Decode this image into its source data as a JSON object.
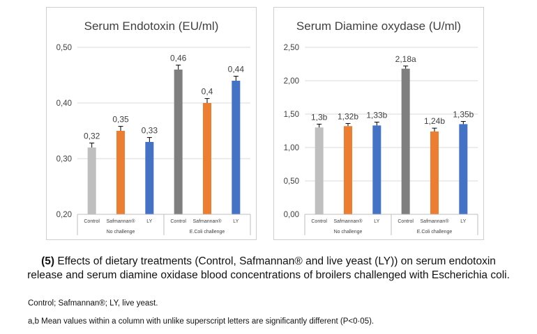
{
  "chart_data": [
    {
      "type": "bar",
      "title": "Serum Endotoxin (EU/ml)",
      "categories": [
        "Control",
        "Safmannan®",
        "LY",
        "Control",
        "Safmannan®",
        "LY"
      ],
      "groups": [
        {
          "label": "No challenge",
          "start": 0,
          "end": 2
        },
        {
          "label": "E.Coli challenge",
          "start": 3,
          "end": 5
        }
      ],
      "values": [
        0.32,
        0.35,
        0.33,
        0.46,
        0.4,
        0.44
      ],
      "error": [
        0.008,
        0.008,
        0.008,
        0.008,
        0.008,
        0.008
      ],
      "data_labels": [
        "0,32",
        "0,35",
        "0,33",
        "0,46",
        "0,4",
        "0,44"
      ],
      "colors": [
        "#bfbfbf",
        "#ed7d31",
        "#4472c4",
        "#7f7f7f",
        "#ed7d31",
        "#4472c4"
      ],
      "ylim": [
        0.2,
        0.5
      ],
      "yticks": [
        0.2,
        0.3,
        0.4,
        0.5
      ],
      "ytick_labels": [
        "0,20",
        "0,30",
        "0,40",
        "0,50"
      ],
      "grid": true
    },
    {
      "type": "bar",
      "title": "Serum Diamine oxydase (U/ml)",
      "categories": [
        "Control",
        "Safmannan®",
        "LY",
        "Control",
        "Safmannan®",
        "LY"
      ],
      "groups": [
        {
          "label": "No challenge",
          "start": 0,
          "end": 2
        },
        {
          "label": "E.Coli challenge",
          "start": 3,
          "end": 5
        }
      ],
      "values": [
        1.3,
        1.32,
        1.33,
        2.18,
        1.24,
        1.35
      ],
      "error": [
        0.05,
        0.04,
        0.05,
        0.04,
        0.05,
        0.04
      ],
      "data_labels": [
        "1,3b",
        "1,32b",
        "1,33b",
        "2,18a",
        "1,24b",
        "1,35b"
      ],
      "colors": [
        "#bfbfbf",
        "#ed7d31",
        "#4472c4",
        "#7f7f7f",
        "#ed7d31",
        "#4472c4"
      ],
      "ylim": [
        0,
        2.5
      ],
      "yticks": [
        0,
        0.5,
        1.0,
        1.5,
        2.0,
        2.5
      ],
      "ytick_labels": [
        "0,00",
        "0,50",
        "1,00",
        "1,50",
        "2,00",
        "2,50"
      ],
      "grid": true
    }
  ],
  "caption": {
    "number": "(5)",
    "text": " Effects of dietary treatments (Control, Safmannan® and live yeast (LY)) on serum endotoxin",
    "line2": "release and serum diamine oxidase blood concentrations of broilers challenged with Escherichia coli."
  },
  "footnotes": {
    "abbrev": "Control; Safmannan®; LY, live yeast.",
    "significance": "a,b Mean values within a column with unlike superscript letters are significantly different (P<0·05)."
  }
}
